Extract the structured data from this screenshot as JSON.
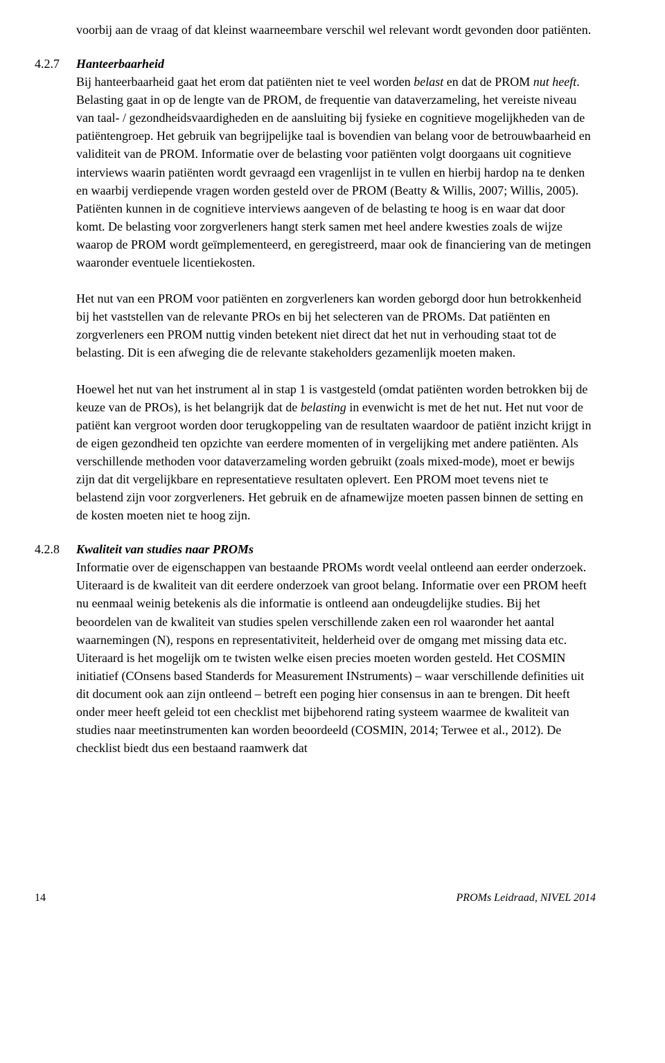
{
  "intro_paragraph": "voorbij aan de vraag of dat kleinst waarneembare verschil wel relevant wordt gevonden door patiënten.",
  "section_427": {
    "number": "4.2.7",
    "title": "Hanteerbaarheid",
    "p1_part1": "Bij hanteerbaarheid gaat het erom dat patiënten niet te veel worden ",
    "p1_belast": "belast",
    "p1_part2": " en dat de PROM ",
    "p1_nut_heeft": "nut heeft",
    "p1_part3": ". Belasting gaat in op de lengte van de PROM, de frequentie van dataverzameling, het vereiste niveau van taal- / gezondheidsvaardigheden en de aansluiting bij fysieke en cognitieve mogelijkheden van de patiëntengroep. Het gebruik van begrijpelijke taal is bovendien van belang voor de betrouwbaarheid en validiteit van de PROM. Informatie over de belasting voor patiënten volgt doorgaans uit cognitieve interviews waarin patiënten wordt gevraagd een vragenlijst in te vullen en hierbij hardop na te denken en waarbij verdiepende vragen worden gesteld over de PROM (Beatty & Willis, 2007; Willis, 2005). Patiënten kunnen in de cognitieve interviews aangeven of de belasting te hoog is en waar dat door komt. De belasting voor zorgverleners hangt sterk samen met heel andere kwesties zoals de wijze waarop de PROM wordt geïmplementeerd, en geregistreerd, maar ook de financiering van de metingen waaronder eventuele licentiekosten.",
    "p2": "Het nut van een PROM voor patiënten en zorgverleners kan worden geborgd door hun betrokkenheid bij het vaststellen van de relevante PROs en bij het selecteren van de PROMs. Dat patiënten en zorgverleners een PROM nuttig vinden betekent niet direct dat het nut in verhouding staat tot de belasting. Dit is een afweging die de relevante stakeholders gezamenlijk moeten maken.",
    "p3_part1": "Hoewel het nut van het instrument al in stap 1 is vastgesteld (omdat patiënten worden betrokken bij de keuze van de PROs), is het belangrijk dat de ",
    "p3_belasting": "belasting",
    "p3_part2": " in evenwicht is met de het nut. Het nut voor de patiënt kan vergroot worden door terugkoppeling van de resultaten waardoor de patiënt inzicht krijgt in de eigen gezondheid ten opzichte van eerdere momenten of in vergelijking met andere patiënten. Als verschillende methoden voor dataverzameling worden gebruikt (zoals mixed-mode), moet er bewijs zijn dat dit vergelijkbare en representatieve resultaten oplevert. Een PROM moet tevens niet te belastend zijn voor zorgverleners. Het gebruik en de afnamewijze moeten passen binnen de setting en de kosten moeten niet te hoog zijn."
  },
  "section_428": {
    "number": "4.2.8",
    "title": "Kwaliteit van studies naar PROMs",
    "p1": "Informatie over de eigenschappen van bestaande PROMs wordt veelal ontleend aan eerder onderzoek. Uiteraard is de kwaliteit van dit eerdere onderzoek van groot belang. Informatie over een PROM heeft nu eenmaal weinig betekenis als die informatie is ontleend aan ondeugdelijke studies. Bij het beoordelen van de kwaliteit van studies spelen verschillende zaken een rol waaronder het aantal waarnemingen (N), respons en representativiteit, helderheid over de omgang met missing data etc. Uiteraard is het mogelijk om te twisten welke eisen precies moeten worden gesteld. Het COSMIN initiatief (COnsens based Standerds for Measurement INstruments) – waar verschillende definities uit dit document ook aan zijn ontleend – betreft een poging hier consensus in aan te brengen. Dit heeft onder meer heeft geleid tot een checklist met bijbehorend rating systeem waarmee de kwaliteit van studies naar meetinstrumenten kan worden beoordeeld (COSMIN, 2014; Terwee et al., 2012). De checklist biedt dus een bestaand raamwerk dat"
  },
  "footer": {
    "page_number": "14",
    "text": "PROMs Leidraad, NIVEL 2014"
  }
}
